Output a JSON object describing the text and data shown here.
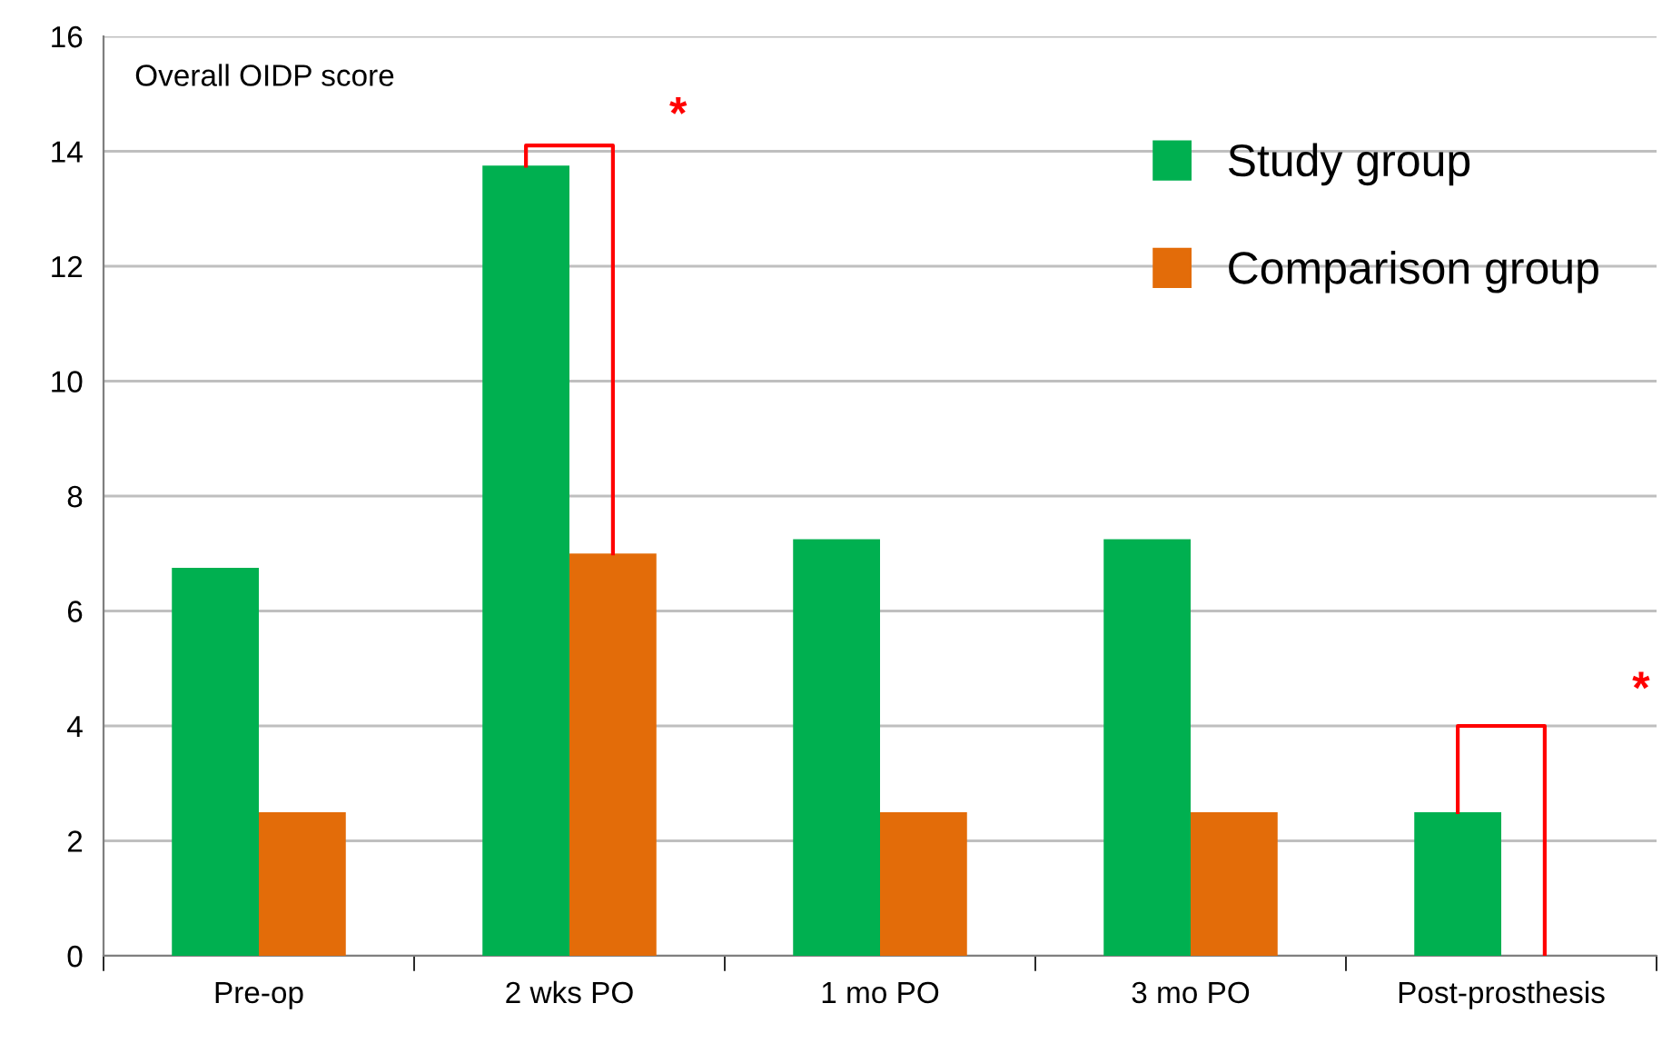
{
  "chart_data": {
    "type": "bar",
    "ylabel": "Overall OIDP score",
    "categories": [
      "Pre-op",
      "2 wks PO",
      "1 mo PO",
      "3 mo PO",
      "Post-prosthesis"
    ],
    "series": [
      {
        "name": "Study group",
        "color": "#00b050",
        "values": [
          6.75,
          13.75,
          7.25,
          7.25,
          2.5
        ]
      },
      {
        "name": "Comparison group",
        "color": "#e36c09",
        "values": [
          2.5,
          7,
          2.5,
          2.5,
          0
        ]
      }
    ],
    "ylim": [
      0,
      16
    ],
    "yticks": [
      0,
      2,
      4,
      6,
      8,
      10,
      12,
      14,
      16
    ],
    "grid": "y",
    "legend": "top right",
    "annotations": [
      "*",
      "*"
    ]
  }
}
